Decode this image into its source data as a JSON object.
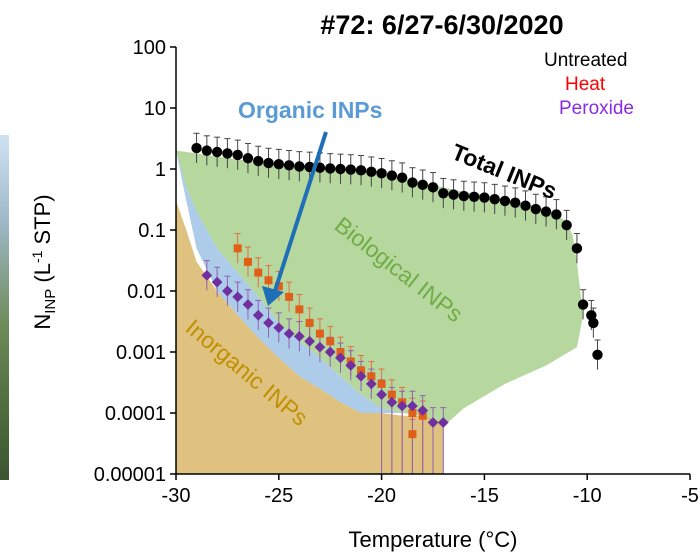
{
  "chart_data": {
    "type": "scatter",
    "title": "#72: 6/27-6/30/2020",
    "xlabel": "Temperature (°C)",
    "ylabel_main": "N",
    "ylabel_sub": "INP",
    "ylabel_unit_open": " (L",
    "ylabel_sup": "-1",
    "ylabel_unit_close": " STP)",
    "xlim": [
      -30,
      -5
    ],
    "ylim": [
      1e-05,
      100
    ],
    "yscale": "log",
    "x_ticks": [
      -30,
      -25,
      -20,
      -15,
      -10,
      -5
    ],
    "x_tick_labels": [
      "-30",
      "-25",
      "-20",
      "-15",
      "-10",
      "-5"
    ],
    "y_ticks": [
      1e-05,
      0.0001,
      0.001,
      0.01,
      0.1,
      1,
      10,
      100
    ],
    "y_tick_labels": [
      "0.00001",
      "0.0001",
      "0.001",
      "0.01",
      "0.1",
      "1",
      "10",
      "100"
    ],
    "legend_position": "top-right",
    "legend": [
      {
        "label": "Untreated",
        "color": "#000000"
      },
      {
        "label": "Heat",
        "color": "#ff0000"
      },
      {
        "label": "Peroxide",
        "color": "#8a2be2"
      }
    ],
    "regions": [
      {
        "label": "Biological INPs",
        "color": "#a9d18e",
        "upper": [
          [
            -30,
            2
          ],
          [
            -29.5,
            1.9
          ],
          [
            -29,
            1.8
          ],
          [
            -28,
            1.6
          ],
          [
            -27,
            1.45
          ],
          [
            -26,
            1.3
          ],
          [
            -25,
            1.2
          ],
          [
            -24,
            1.1
          ],
          [
            -23,
            1.05
          ],
          [
            -22,
            1
          ],
          [
            -21,
            0.95
          ],
          [
            -20,
            0.85
          ],
          [
            -19,
            0.7
          ],
          [
            -18,
            0.6
          ],
          [
            -17,
            0.5
          ],
          [
            -16,
            0.42
          ],
          [
            -15,
            0.38
          ],
          [
            -14,
            0.32
          ],
          [
            -13,
            0.27
          ],
          [
            -12,
            0.22
          ],
          [
            -11,
            0.14
          ],
          [
            -10.7,
            0.08
          ],
          [
            -10.5,
            0.03
          ],
          [
            -10.2,
            0.004
          ]
        ],
        "lower": [
          [
            -30,
            2
          ],
          [
            -29.5,
            0.5
          ],
          [
            -29,
            0.2
          ],
          [
            -28,
            0.05
          ],
          [
            -27,
            0.02
          ],
          [
            -26,
            0.008
          ],
          [
            -25,
            0.003
          ],
          [
            -24,
            0.0015
          ],
          [
            -23,
            0.0008
          ],
          [
            -22,
            0.0004
          ],
          [
            -21,
            0.0002
          ],
          [
            -20,
            0.00012
          ],
          [
            -19,
            0.0001
          ],
          [
            -18,
            9e-05
          ],
          [
            -17.5,
            7e-05
          ],
          [
            -17,
            6e-05
          ],
          [
            -16,
            0.00012
          ],
          [
            -14,
            0.0003
          ],
          [
            -12,
            0.0006
          ],
          [
            -10.5,
            0.0012
          ],
          [
            -10.2,
            0.004
          ]
        ]
      },
      {
        "label": "Organic INPs",
        "color": "#9dc3e6",
        "upper": [
          [
            -30,
            2
          ],
          [
            -29.5,
            0.5
          ],
          [
            -29,
            0.2
          ],
          [
            -28,
            0.05
          ],
          [
            -27,
            0.02
          ],
          [
            -26,
            0.008
          ],
          [
            -25,
            0.003
          ],
          [
            -24,
            0.0015
          ],
          [
            -23,
            0.0008
          ],
          [
            -22,
            0.0004
          ],
          [
            -21,
            0.0002
          ],
          [
            -20,
            0.00012
          ],
          [
            -19,
            0.0001
          ]
        ],
        "lower": [
          [
            -30,
            2
          ],
          [
            -29.5,
            0.3
          ],
          [
            -29,
            0.05
          ],
          [
            -28,
            0.01
          ],
          [
            -27,
            0.004
          ],
          [
            -26,
            0.0017
          ],
          [
            -25,
            0.0008
          ],
          [
            -24,
            0.0004
          ],
          [
            -23,
            0.00025
          ],
          [
            -22,
            0.00015
          ],
          [
            -21,
            0.0001
          ],
          [
            -20,
            0.0001
          ],
          [
            -19,
            0.0001
          ]
        ]
      },
      {
        "label": "Inorganic INPs",
        "color": "#dbb76a",
        "upper": [
          [
            -30,
            0.3
          ],
          [
            -29.5,
            0.1
          ],
          [
            -29,
            0.03
          ],
          [
            -28,
            0.01
          ],
          [
            -27,
            0.004
          ],
          [
            -26,
            0.0017
          ],
          [
            -25,
            0.0008
          ],
          [
            -24,
            0.0004
          ],
          [
            -23,
            0.00025
          ],
          [
            -22,
            0.00015
          ],
          [
            -21,
            0.0001
          ],
          [
            -20,
            0.0001
          ],
          [
            -19,
            9e-05
          ],
          [
            -18,
            9e-05
          ],
          [
            -17,
            7e-05
          ]
        ],
        "lower": [
          [
            -30,
            1e-05
          ],
          [
            -17,
            1e-05
          ]
        ]
      }
    ],
    "series": [
      {
        "name": "Untreated",
        "color": "#000000",
        "points": [
          [
            -29.0,
            2.2
          ],
          [
            -28.5,
            2.0
          ],
          [
            -28.0,
            1.9
          ],
          [
            -27.5,
            1.8
          ],
          [
            -27.0,
            1.7
          ],
          [
            -26.5,
            1.5
          ],
          [
            -26.0,
            1.35
          ],
          [
            -25.5,
            1.25
          ],
          [
            -25.0,
            1.2
          ],
          [
            -24.5,
            1.15
          ],
          [
            -24.0,
            1.1
          ],
          [
            -23.5,
            1.08
          ],
          [
            -23.0,
            1.05
          ],
          [
            -22.5,
            1.02
          ],
          [
            -22.0,
            1.0
          ],
          [
            -21.5,
            0.98
          ],
          [
            -21.0,
            0.95
          ],
          [
            -20.5,
            0.9
          ],
          [
            -20.0,
            0.85
          ],
          [
            -19.5,
            0.78
          ],
          [
            -19.0,
            0.72
          ],
          [
            -18.5,
            0.6
          ],
          [
            -18.0,
            0.55
          ],
          [
            -17.5,
            0.5
          ],
          [
            -17.0,
            0.4
          ],
          [
            -16.5,
            0.38
          ],
          [
            -16.0,
            0.36
          ],
          [
            -15.5,
            0.35
          ],
          [
            -15.0,
            0.34
          ],
          [
            -14.5,
            0.32
          ],
          [
            -14.0,
            0.3
          ],
          [
            -13.5,
            0.28
          ],
          [
            -13.0,
            0.25
          ],
          [
            -12.5,
            0.22
          ],
          [
            -12.0,
            0.2
          ],
          [
            -11.5,
            0.18
          ],
          [
            -11.0,
            0.12
          ],
          [
            -10.5,
            0.05
          ],
          [
            -10.2,
            0.006
          ],
          [
            -9.8,
            0.004
          ],
          [
            -9.7,
            0.003
          ],
          [
            -9.5,
            0.0009
          ]
        ]
      },
      {
        "name": "Heat",
        "color": "#e0601a",
        "points": [
          [
            -27.0,
            0.05
          ],
          [
            -26.5,
            0.03
          ],
          [
            -26.0,
            0.02
          ],
          [
            -25.5,
            0.015
          ],
          [
            -25.0,
            0.012
          ],
          [
            -24.5,
            0.008
          ],
          [
            -24.0,
            0.005
          ],
          [
            -23.5,
            0.003
          ],
          [
            -23.0,
            0.002
          ],
          [
            -22.5,
            0.0015
          ],
          [
            -22.0,
            0.001
          ],
          [
            -21.5,
            0.0007
          ],
          [
            -21.0,
            0.0005
          ],
          [
            -20.5,
            0.0004
          ],
          [
            -20.0,
            0.0003
          ],
          [
            -19.5,
            0.0002
          ],
          [
            -19.0,
            0.00015
          ],
          [
            -18.5,
            0.0001
          ],
          [
            -18.0,
            9e-05
          ],
          [
            -18.5,
            4.5e-05
          ]
        ]
      },
      {
        "name": "Peroxide",
        "color": "#7030a0",
        "points": [
          [
            -28.5,
            0.018
          ],
          [
            -28.0,
            0.014
          ],
          [
            -27.5,
            0.01
          ],
          [
            -27.0,
            0.008
          ],
          [
            -26.5,
            0.006
          ],
          [
            -26.0,
            0.004
          ],
          [
            -25.5,
            0.003
          ],
          [
            -25.0,
            0.0025
          ],
          [
            -24.5,
            0.002
          ],
          [
            -24.0,
            0.0018
          ],
          [
            -23.5,
            0.0015
          ],
          [
            -23.0,
            0.0012
          ],
          [
            -22.5,
            0.001
          ],
          [
            -22.0,
            0.0008
          ],
          [
            -21.5,
            0.0006
          ],
          [
            -21.0,
            0.0004
          ],
          [
            -20.5,
            0.0003
          ],
          [
            -20.0,
            0.0002
          ],
          [
            -19.5,
            0.00015
          ],
          [
            -19.0,
            0.00013
          ],
          [
            -18.5,
            0.00013
          ],
          [
            -18.0,
            0.00011
          ],
          [
            -17.5,
            7e-05
          ],
          [
            -17.0,
            7e-05
          ]
        ]
      }
    ],
    "annotations": [
      {
        "text": "Total INPs",
        "color": "#000000"
      },
      {
        "text": "Biological INPs",
        "color": "#70ad47"
      },
      {
        "text": "Organic INPs",
        "color": "#5b9bd5"
      },
      {
        "text": "Inorganic INPs",
        "color": "#bf9000"
      }
    ]
  }
}
